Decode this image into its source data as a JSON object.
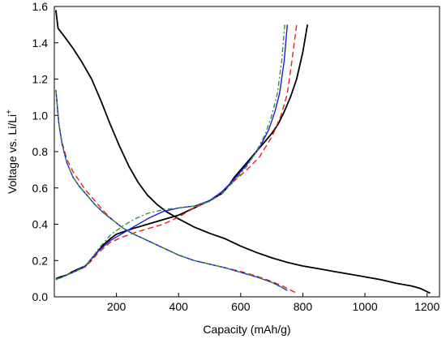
{
  "chart_data": {
    "type": "line",
    "title": "",
    "xlabel": "Capacity (mAh/g)",
    "ylabel": "Voltage vs. Li/Li",
    "ylabel_superscript": "+",
    "xlim": [
      0,
      1240
    ],
    "ylim": [
      0,
      1.6
    ],
    "xticks": [
      "200",
      "400",
      "600",
      "800",
      "1000",
      "1200"
    ],
    "yticks": [
      "0.0",
      "0.2",
      "0.4",
      "0.6",
      "0.8",
      "1.0",
      "1.2",
      "1.4",
      "1.6"
    ],
    "grid": false,
    "legend": "none",
    "series": [
      {
        "color": "#000000",
        "dash": "solid",
        "points": [
          [
            5,
            1.58
          ],
          [
            12,
            1.48
          ],
          [
            30,
            1.44
          ],
          [
            60,
            1.37
          ],
          [
            90,
            1.29
          ],
          [
            120,
            1.2
          ],
          [
            150,
            1.08
          ],
          [
            180,
            0.95
          ],
          [
            210,
            0.83
          ],
          [
            240,
            0.72
          ],
          [
            270,
            0.63
          ],
          [
            300,
            0.56
          ],
          [
            330,
            0.51
          ],
          [
            360,
            0.47
          ],
          [
            400,
            0.43
          ],
          [
            450,
            0.385
          ],
          [
            500,
            0.35
          ],
          [
            550,
            0.32
          ],
          [
            600,
            0.28
          ],
          [
            650,
            0.245
          ],
          [
            700,
            0.215
          ],
          [
            750,
            0.19
          ],
          [
            800,
            0.17
          ],
          [
            850,
            0.155
          ],
          [
            900,
            0.14
          ],
          [
            950,
            0.125
          ],
          [
            1000,
            0.11
          ],
          [
            1050,
            0.095
          ],
          [
            1100,
            0.075
          ],
          [
            1150,
            0.06
          ],
          [
            1180,
            0.045
          ],
          [
            1210,
            0.02
          ]
        ]
      },
      {
        "color": "#000000",
        "dash": "solid",
        "points": [
          [
            5,
            0.1
          ],
          [
            20,
            0.11
          ],
          [
            40,
            0.12
          ],
          [
            60,
            0.14
          ],
          [
            80,
            0.155
          ],
          [
            100,
            0.17
          ],
          [
            120,
            0.21
          ],
          [
            140,
            0.25
          ],
          [
            160,
            0.29
          ],
          [
            180,
            0.32
          ],
          [
            200,
            0.345
          ],
          [
            250,
            0.375
          ],
          [
            300,
            0.4
          ],
          [
            350,
            0.425
          ],
          [
            400,
            0.45
          ],
          [
            450,
            0.49
          ],
          [
            500,
            0.53
          ],
          [
            540,
            0.57
          ],
          [
            560,
            0.61
          ],
          [
            580,
            0.66
          ],
          [
            600,
            0.7
          ],
          [
            620,
            0.74
          ],
          [
            640,
            0.78
          ],
          [
            660,
            0.82
          ],
          [
            680,
            0.86
          ],
          [
            700,
            0.9
          ],
          [
            720,
            0.95
          ],
          [
            740,
            1.02
          ],
          [
            760,
            1.1
          ],
          [
            780,
            1.2
          ],
          [
            800,
            1.35
          ],
          [
            815,
            1.5
          ]
        ]
      },
      {
        "color": "#e82020",
        "dash": "7,4",
        "points": [
          [
            5,
            1.14
          ],
          [
            15,
            0.95
          ],
          [
            25,
            0.85
          ],
          [
            40,
            0.76
          ],
          [
            60,
            0.69
          ],
          [
            80,
            0.64
          ],
          [
            100,
            0.59
          ],
          [
            130,
            0.53
          ],
          [
            160,
            0.47
          ],
          [
            190,
            0.42
          ],
          [
            220,
            0.38
          ],
          [
            250,
            0.35
          ],
          [
            300,
            0.31
          ],
          [
            350,
            0.27
          ],
          [
            400,
            0.23
          ],
          [
            450,
            0.2
          ],
          [
            500,
            0.18
          ],
          [
            550,
            0.16
          ],
          [
            600,
            0.14
          ],
          [
            650,
            0.115
          ],
          [
            700,
            0.085
          ],
          [
            740,
            0.055
          ],
          [
            780,
            0.02
          ]
        ]
      },
      {
        "color": "#e82020",
        "dash": "7,4",
        "points": [
          [
            5,
            0.095
          ],
          [
            20,
            0.105
          ],
          [
            40,
            0.12
          ],
          [
            60,
            0.135
          ],
          [
            80,
            0.15
          ],
          [
            100,
            0.165
          ],
          [
            120,
            0.2
          ],
          [
            140,
            0.24
          ],
          [
            160,
            0.27
          ],
          [
            180,
            0.3
          ],
          [
            220,
            0.33
          ],
          [
            260,
            0.355
          ],
          [
            300,
            0.375
          ],
          [
            350,
            0.4
          ],
          [
            400,
            0.44
          ],
          [
            450,
            0.49
          ],
          [
            500,
            0.53
          ],
          [
            540,
            0.58
          ],
          [
            580,
            0.64
          ],
          [
            620,
            0.7
          ],
          [
            660,
            0.77
          ],
          [
            700,
            0.88
          ],
          [
            730,
            1.0
          ],
          [
            750,
            1.12
          ],
          [
            765,
            1.3
          ],
          [
            780,
            1.5
          ]
        ]
      },
      {
        "color": "#1a1aee",
        "dash": "solid",
        "points": [
          [
            5,
            1.14
          ],
          [
            15,
            0.95
          ],
          [
            25,
            0.84
          ],
          [
            40,
            0.74
          ],
          [
            60,
            0.66
          ],
          [
            80,
            0.61
          ],
          [
            100,
            0.57
          ],
          [
            130,
            0.51
          ],
          [
            160,
            0.46
          ],
          [
            190,
            0.42
          ],
          [
            220,
            0.38
          ],
          [
            250,
            0.35
          ],
          [
            300,
            0.31
          ],
          [
            350,
            0.27
          ],
          [
            400,
            0.23
          ],
          [
            450,
            0.2
          ],
          [
            500,
            0.18
          ],
          [
            550,
            0.16
          ],
          [
            600,
            0.135
          ],
          [
            650,
            0.11
          ],
          [
            700,
            0.08
          ],
          [
            730,
            0.055
          ],
          [
            750,
            0.035
          ]
        ]
      },
      {
        "color": "#1a1aee",
        "dash": "solid",
        "points": [
          [
            5,
            0.095
          ],
          [
            20,
            0.105
          ],
          [
            40,
            0.12
          ],
          [
            60,
            0.135
          ],
          [
            80,
            0.15
          ],
          [
            100,
            0.17
          ],
          [
            120,
            0.21
          ],
          [
            140,
            0.25
          ],
          [
            160,
            0.28
          ],
          [
            180,
            0.31
          ],
          [
            220,
            0.35
          ],
          [
            260,
            0.39
          ],
          [
            300,
            0.43
          ],
          [
            350,
            0.47
          ],
          [
            400,
            0.49
          ],
          [
            450,
            0.5
          ],
          [
            500,
            0.53
          ],
          [
            540,
            0.58
          ],
          [
            580,
            0.65
          ],
          [
            620,
            0.73
          ],
          [
            660,
            0.82
          ],
          [
            690,
            0.92
          ],
          [
            710,
            1.02
          ],
          [
            725,
            1.12
          ],
          [
            740,
            1.3
          ],
          [
            750,
            1.5
          ]
        ]
      },
      {
        "color": "#2a9a2a",
        "dash": "6,3,2,3",
        "points": [
          [
            5,
            1.14
          ],
          [
            15,
            0.95
          ],
          [
            25,
            0.84
          ],
          [
            40,
            0.74
          ],
          [
            60,
            0.66
          ],
          [
            80,
            0.61
          ],
          [
            100,
            0.57
          ],
          [
            130,
            0.51
          ],
          [
            160,
            0.46
          ],
          [
            190,
            0.42
          ],
          [
            220,
            0.38
          ],
          [
            250,
            0.35
          ],
          [
            300,
            0.31
          ],
          [
            350,
            0.27
          ],
          [
            400,
            0.23
          ],
          [
            450,
            0.2
          ],
          [
            500,
            0.18
          ],
          [
            550,
            0.16
          ],
          [
            600,
            0.135
          ],
          [
            650,
            0.11
          ],
          [
            700,
            0.08
          ],
          [
            730,
            0.055
          ],
          [
            745,
            0.035
          ]
        ]
      },
      {
        "color": "#2a9a2a",
        "dash": "6,3,2,3",
        "points": [
          [
            5,
            0.095
          ],
          [
            20,
            0.105
          ],
          [
            40,
            0.12
          ],
          [
            60,
            0.135
          ],
          [
            80,
            0.15
          ],
          [
            100,
            0.17
          ],
          [
            120,
            0.21
          ],
          [
            140,
            0.26
          ],
          [
            160,
            0.3
          ],
          [
            180,
            0.34
          ],
          [
            220,
            0.39
          ],
          [
            260,
            0.43
          ],
          [
            300,
            0.46
          ],
          [
            350,
            0.48
          ],
          [
            400,
            0.49
          ],
          [
            450,
            0.5
          ],
          [
            500,
            0.525
          ],
          [
            540,
            0.57
          ],
          [
            580,
            0.64
          ],
          [
            620,
            0.72
          ],
          [
            650,
            0.8
          ],
          [
            680,
            0.9
          ],
          [
            700,
            1.0
          ],
          [
            718,
            1.12
          ],
          [
            732,
            1.3
          ],
          [
            742,
            1.5
          ]
        ]
      }
    ]
  }
}
